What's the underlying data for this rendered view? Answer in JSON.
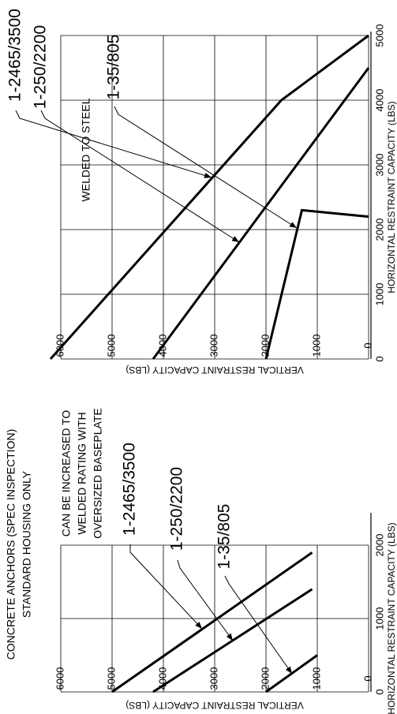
{
  "chart_data": [
    {
      "type": "line",
      "title": [
        "CONCRETE ANCHORS (SPEC INSPECTION)",
        "STANDARD HOUSING ONLY"
      ],
      "note": [
        "CAN BE INCREASED TO",
        "WELDED RATING WITH",
        "OVERSIZED BASEPLATE"
      ],
      "xlabel": "HORIZONTAL RESTRAINT CAPACITY (LBS)",
      "ylabel": "VERTICAL RESTRAINT CAPACITY (LBS)",
      "xlim": [
        0,
        2000
      ],
      "xticks": [
        0,
        1000,
        2000
      ],
      "ylim": [
        0,
        6000
      ],
      "yticks": [
        0,
        1000,
        2000,
        3000,
        4000,
        5000,
        6000
      ],
      "grid": true,
      "color": "#000000",
      "series": [
        {
          "name": "1-2465/3500",
          "x": [
            0,
            1900
          ],
          "values": [
            5000,
            1100
          ]
        },
        {
          "name": "1-250/2200",
          "x": [
            0,
            1400
          ],
          "values": [
            4200,
            1100
          ]
        },
        {
          "name": "1-35/805",
          "x": [
            0,
            500
          ],
          "values": [
            2000,
            1000
          ]
        }
      ]
    },
    {
      "type": "line",
      "title": [
        "WELDED TO STEEL"
      ],
      "xlabel": "HORIZONTAL RESTRAINT CAPACITY (LBS)",
      "ylabel": "VERTICAL RESTRAINT CAPACITY (LBS)",
      "xlim": [
        0,
        5000
      ],
      "xticks": [
        0,
        1000,
        2000,
        3000,
        4000,
        5000
      ],
      "ylim": [
        0,
        6000
      ],
      "yticks": [
        0,
        1000,
        2000,
        3000,
        4000,
        5000,
        6000
      ],
      "grid": true,
      "color": "#000000",
      "series": [
        {
          "name": "1-2465/3500",
          "x": [
            0,
            4000,
            5000
          ],
          "values": [
            6200,
            1700,
            0
          ]
        },
        {
          "name": "1-250/2200",
          "x": [
            0,
            3000,
            4500
          ],
          "values": [
            4200,
            1400,
            0
          ]
        },
        {
          "name": "1-35/805",
          "x": [
            0,
            2300,
            2200
          ],
          "values": [
            2000,
            1300,
            0
          ]
        }
      ]
    }
  ]
}
